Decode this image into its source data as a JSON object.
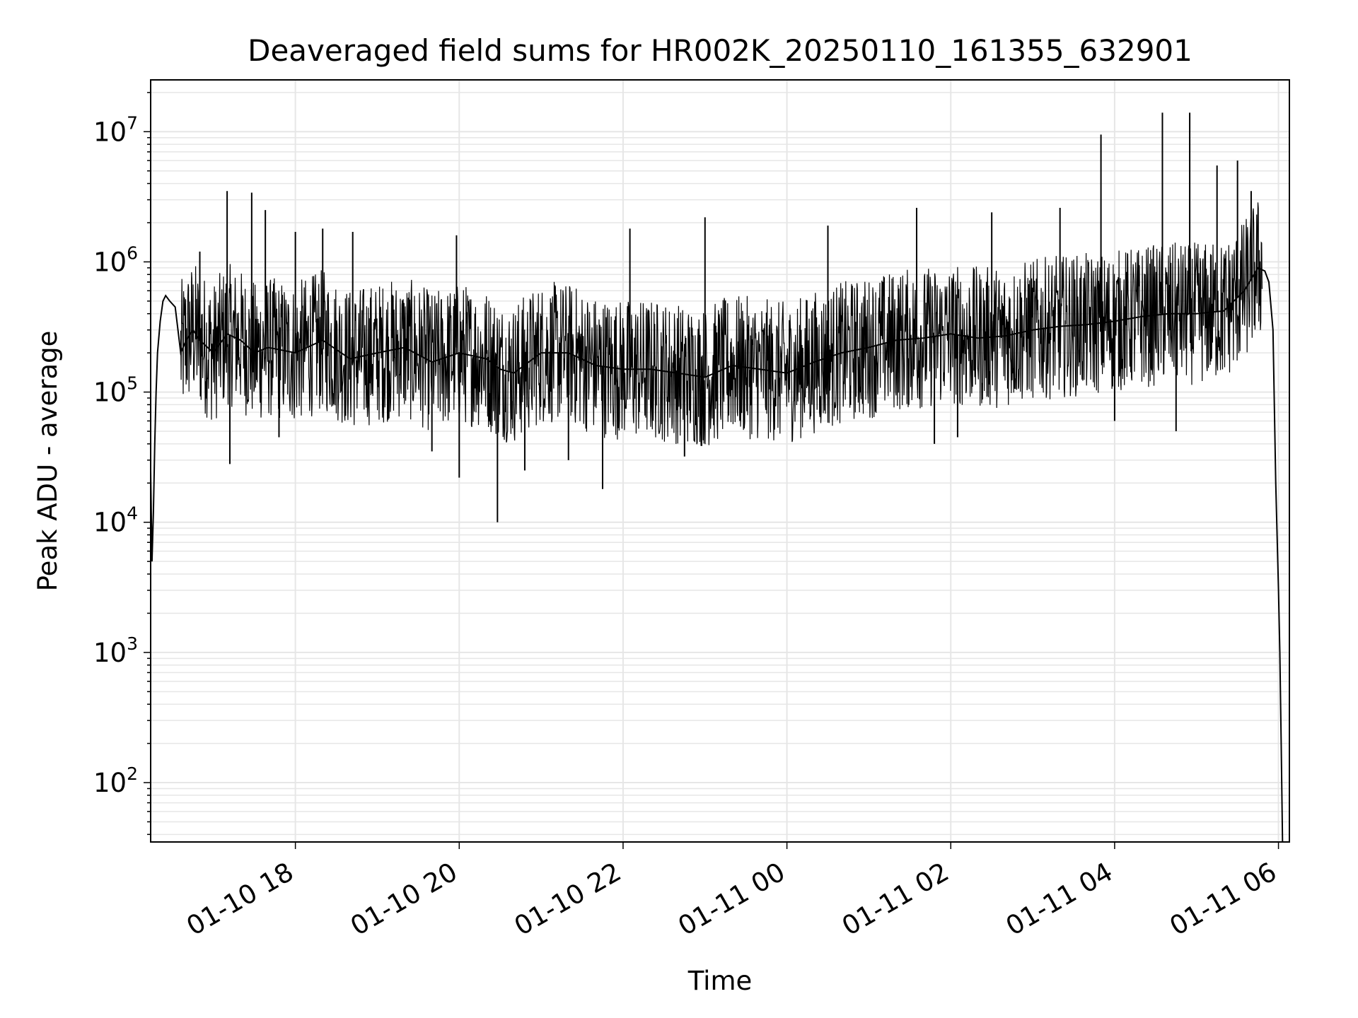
{
  "chart_data": {
    "type": "line",
    "title": "Deaveraged field sums for HR002K_20250110_161355_632901",
    "xlabel": "Time",
    "ylabel": "Peak ADU - average",
    "x_tick_labels": [
      "01-10 18",
      "01-10 20",
      "01-10 22",
      "01-11 00",
      "01-11 02",
      "01-11 04",
      "01-11 06"
    ],
    "x_tick_dates": [
      "2025-01-10 18:00",
      "2025-01-10 20:00",
      "2025-01-10 22:00",
      "2025-01-11 00:00",
      "2025-01-11 02:00",
      "2025-01-11 04:00",
      "2025-01-11 06:00"
    ],
    "xlim": [
      "2025-01-10 16:14",
      "2025-01-11 06:08"
    ],
    "y_scale": "log",
    "y_tick_labels": [
      "10^2",
      "10^3",
      "10^4",
      "10^5",
      "10^6",
      "10^7"
    ],
    "ylim": [
      35,
      25000000
    ],
    "grid": true,
    "line_color": "#000000",
    "series": [
      {
        "x": [
          "2025-01-10 16:14",
          "2025-01-10 16:15",
          "2025-01-10 16:16",
          "2025-01-10 16:17",
          "2025-01-10 16:18",
          "2025-01-10 16:19",
          "2025-01-10 16:21",
          "2025-01-10 16:23",
          "2025-01-10 16:25",
          "2025-01-10 16:28",
          "2025-01-10 16:32",
          "2025-01-10 16:36",
          "2025-01-10 16:40",
          "2025-01-10 16:45",
          "2025-01-10 16:50",
          "2025-01-10 17:00",
          "2025-01-10 17:10",
          "2025-01-10 17:20",
          "2025-01-10 17:30",
          "2025-01-10 17:40",
          "2025-01-10 18:00",
          "2025-01-10 18:20",
          "2025-01-10 18:40",
          "2025-01-10 19:00",
          "2025-01-10 19:20",
          "2025-01-10 19:40",
          "2025-01-10 20:00",
          "2025-01-10 20:20",
          "2025-01-10 20:30",
          "2025-01-10 20:40",
          "2025-01-10 21:00",
          "2025-01-10 21:20",
          "2025-01-10 21:40",
          "2025-01-10 22:00",
          "2025-01-10 22:20",
          "2025-01-10 22:40",
          "2025-01-10 23:00",
          "2025-01-10 23:20",
          "2025-01-10 23:40",
          "2025-01-11 00:00",
          "2025-01-11 00:20",
          "2025-01-11 00:40",
          "2025-01-11 01:00",
          "2025-01-11 01:20",
          "2025-01-11 01:40",
          "2025-01-11 02:00",
          "2025-01-11 02:20",
          "2025-01-11 02:40",
          "2025-01-11 03:00",
          "2025-01-11 03:20",
          "2025-01-11 03:40",
          "2025-01-11 04:00",
          "2025-01-11 04:20",
          "2025-01-11 04:40",
          "2025-01-11 05:00",
          "2025-01-11 05:20",
          "2025-01-11 05:35",
          "2025-01-11 05:45",
          "2025-01-11 05:50",
          "2025-01-11 05:53",
          "2025-01-11 05:56",
          "2025-01-11 05:58",
          "2025-01-11 06:00",
          "2025-01-11 06:01",
          "2025-01-11 06:02",
          "2025-01-11 06:03"
        ],
        "y": [
          25000,
          5000,
          12000,
          40000,
          100000,
          200000,
          350000,
          500000,
          550000,
          500000,
          450000,
          200000,
          250000,
          300000,
          250000,
          200000,
          280000,
          250000,
          200000,
          220000,
          200000,
          250000,
          180000,
          200000,
          220000,
          170000,
          200000,
          180000,
          150000,
          140000,
          200000,
          200000,
          160000,
          150000,
          150000,
          140000,
          130000,
          160000,
          150000,
          140000,
          170000,
          200000,
          220000,
          250000,
          260000,
          280000,
          260000,
          270000,
          300000,
          320000,
          330000,
          350000,
          380000,
          400000,
          400000,
          420000,
          600000,
          900000,
          850000,
          700000,
          300000,
          20000,
          3000,
          1000,
          200,
          35
        ]
      }
    ],
    "spikes": [
      {
        "x": "2025-01-10 16:50",
        "y": 1200000
      },
      {
        "x": "2025-01-10 17:10",
        "y": 3500000
      },
      {
        "x": "2025-01-10 17:12",
        "y": 28000
      },
      {
        "x": "2025-01-10 17:28",
        "y": 3400000
      },
      {
        "x": "2025-01-10 17:38",
        "y": 2500000
      },
      {
        "x": "2025-01-10 17:48",
        "y": 45000
      },
      {
        "x": "2025-01-10 18:00",
        "y": 1700000
      },
      {
        "x": "2025-01-10 18:20",
        "y": 1800000
      },
      {
        "x": "2025-01-10 18:42",
        "y": 1700000
      },
      {
        "x": "2025-01-10 19:40",
        "y": 35000
      },
      {
        "x": "2025-01-10 19:58",
        "y": 1600000
      },
      {
        "x": "2025-01-10 20:00",
        "y": 22000
      },
      {
        "x": "2025-01-10 20:28",
        "y": 10000
      },
      {
        "x": "2025-01-10 20:48",
        "y": 25000
      },
      {
        "x": "2025-01-10 21:20",
        "y": 30000
      },
      {
        "x": "2025-01-10 21:45",
        "y": 18000
      },
      {
        "x": "2025-01-10 22:05",
        "y": 1800000
      },
      {
        "x": "2025-01-10 22:45",
        "y": 32000
      },
      {
        "x": "2025-01-10 23:00",
        "y": 2200000
      },
      {
        "x": "2025-01-11 00:30",
        "y": 1900000
      },
      {
        "x": "2025-01-11 01:35",
        "y": 2600000
      },
      {
        "x": "2025-01-11 01:48",
        "y": 40000
      },
      {
        "x": "2025-01-11 02:05",
        "y": 45000
      },
      {
        "x": "2025-01-11 02:30",
        "y": 2400000
      },
      {
        "x": "2025-01-11 03:20",
        "y": 2600000
      },
      {
        "x": "2025-01-11 03:50",
        "y": 9500000
      },
      {
        "x": "2025-01-11 04:00",
        "y": 60000
      },
      {
        "x": "2025-01-11 04:35",
        "y": 14000000
      },
      {
        "x": "2025-01-11 04:45",
        "y": 50000
      },
      {
        "x": "2025-01-11 04:55",
        "y": 14000000
      },
      {
        "x": "2025-01-11 05:15",
        "y": 5500000
      },
      {
        "x": "2025-01-11 05:30",
        "y": 6000000
      },
      {
        "x": "2025-01-11 05:40",
        "y": 3500000
      }
    ]
  }
}
